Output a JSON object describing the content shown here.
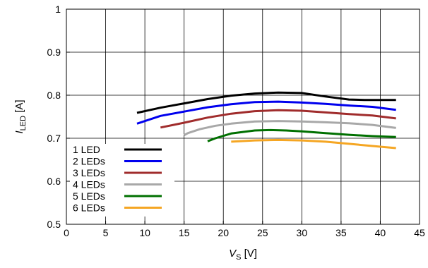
{
  "chart_data": {
    "type": "line",
    "xlabel": {
      "main": "V",
      "sub": "S",
      "unit": " [V]"
    },
    "ylabel": {
      "main": "I",
      "sub": "LED",
      "unit": " [A]"
    },
    "xlim": [
      0,
      45
    ],
    "ylim": [
      0.5,
      1.0
    ],
    "xticks": [
      0,
      5,
      10,
      15,
      20,
      25,
      30,
      35,
      40,
      45
    ],
    "yticks": [
      0.5,
      0.6,
      0.7,
      0.8,
      0.9,
      1.0
    ],
    "ytick_labels": [
      "0.5",
      "0.6",
      "0.7",
      "0.8",
      "0.9",
      "1"
    ],
    "grid": true,
    "legend_position": "bottom-left",
    "series": [
      {
        "name": "1 LED",
        "color": "#000000",
        "x": [
          9,
          12,
          15,
          18,
          21,
          24,
          27,
          30,
          33,
          36,
          38,
          40,
          42
        ],
        "y": [
          0.759,
          0.771,
          0.781,
          0.791,
          0.799,
          0.804,
          0.806,
          0.805,
          0.797,
          0.79,
          0.789,
          0.789,
          0.789
        ]
      },
      {
        "name": "2 LEDs",
        "color": "#0000ee",
        "x": [
          9,
          12,
          15,
          18,
          21,
          24,
          27,
          30,
          33,
          36,
          39,
          42
        ],
        "y": [
          0.734,
          0.752,
          0.762,
          0.772,
          0.779,
          0.784,
          0.785,
          0.783,
          0.78,
          0.776,
          0.773,
          0.766
        ]
      },
      {
        "name": "3 LEDs",
        "color": "#a02c2c",
        "x": [
          12,
          15,
          18,
          21,
          24,
          27,
          30,
          33,
          36,
          39,
          42
        ],
        "y": [
          0.725,
          0.736,
          0.748,
          0.757,
          0.763,
          0.765,
          0.764,
          0.76,
          0.756,
          0.753,
          0.746
        ]
      },
      {
        "name": "4 LEDs",
        "color": "#a8a8a8",
        "x": [
          15,
          15.5,
          17,
          19,
          21,
          24,
          27,
          30,
          33,
          36,
          39,
          42
        ],
        "y": [
          0.707,
          0.712,
          0.721,
          0.729,
          0.734,
          0.739,
          0.74,
          0.739,
          0.737,
          0.735,
          0.731,
          0.724
        ]
      },
      {
        "name": "5 LEDs",
        "color": "#007000",
        "x": [
          18,
          19,
          21,
          24,
          26,
          28,
          30,
          33,
          36,
          39,
          42
        ],
        "y": [
          0.693,
          0.7,
          0.711,
          0.718,
          0.719,
          0.718,
          0.716,
          0.712,
          0.708,
          0.705,
          0.703
        ]
      },
      {
        "name": "6 LEDs",
        "color": "#f5a623",
        "x": [
          21,
          24,
          27,
          30,
          33,
          36,
          39,
          42
        ],
        "y": [
          0.692,
          0.695,
          0.696,
          0.695,
          0.692,
          0.687,
          0.682,
          0.677
        ]
      }
    ]
  }
}
